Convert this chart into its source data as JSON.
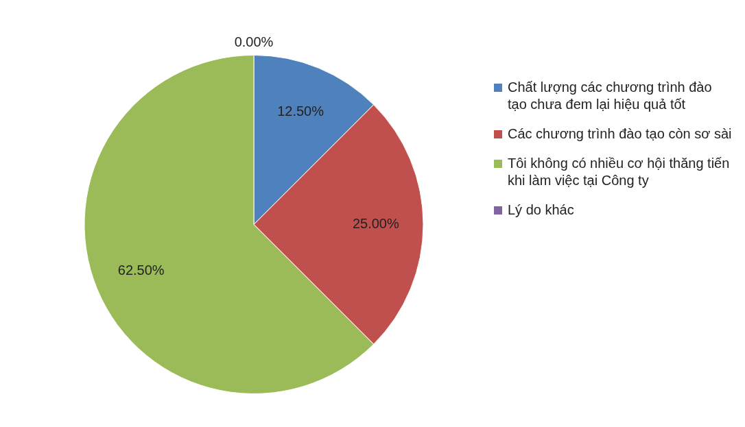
{
  "chart_data": {
    "type": "pie",
    "categories": [
      "Chất lượng các chương trình đào tạo chưa đem lại hiệu quả tốt",
      "Các chương trình đào tạo còn sơ sài",
      "Tôi không có nhiều cơ hội thăng tiến khi làm việc tại Công ty",
      "Lý do khác"
    ],
    "values": [
      12.5,
      25,
      62.5,
      0
    ],
    "colors": [
      "#4f81bd",
      "#c0504d",
      "#9bbb59",
      "#8064a2"
    ],
    "value_labels": [
      "12.50%",
      "25.00%",
      "62.50%",
      "0.00%"
    ],
    "legend": "right"
  }
}
